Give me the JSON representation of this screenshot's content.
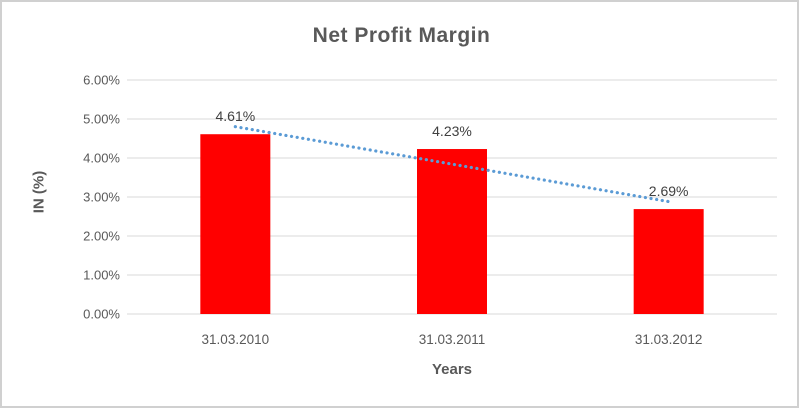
{
  "chart_data": {
    "type": "bar",
    "title": "Net Profit Margin",
    "categories": [
      "31.03.2010",
      "31.03.2011",
      "31.03.2012"
    ],
    "series": [
      {
        "name": "Net Profit Margin",
        "values": [
          4.61,
          4.23,
          2.69
        ]
      }
    ],
    "data_labels": [
      "4.61%",
      "4.23%",
      "2.69%"
    ],
    "xlabel": "Years",
    "ylabel": "IN (%)",
    "ylim": [
      0,
      6
    ],
    "ytick_step": 1,
    "ytick_labels": [
      "0.00%",
      "1.00%",
      "2.00%",
      "3.00%",
      "4.00%",
      "5.00%",
      "6.00%"
    ],
    "grid": true,
    "legend": "none",
    "trendline": {
      "type": "linear",
      "series": "Net Profit Margin",
      "style": "dotted"
    },
    "colors": {
      "bar": "#FF0000",
      "trendline": "#5B9BD5",
      "gridline": "#D9D9D9",
      "title_text": "#595959",
      "axis_text": "#595959",
      "label_text": "#404040"
    }
  }
}
